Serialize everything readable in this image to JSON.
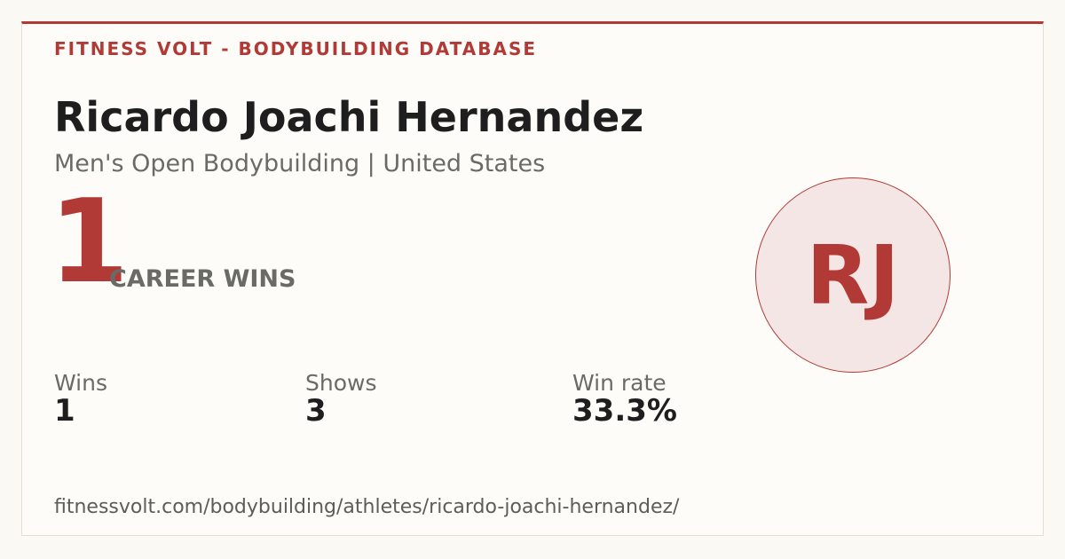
{
  "header": {
    "site": "FITNESS VOLT - BODYBUILDING DATABASE"
  },
  "athlete": {
    "name": "Ricardo Joachi Hernandez",
    "subtitle": "Men's Open Bodybuilding | United States",
    "initials": "RJ"
  },
  "career": {
    "wins": "1",
    "label": "CAREER WINS"
  },
  "stats": [
    {
      "label": "Wins",
      "value": "1"
    },
    {
      "label": "Shows",
      "value": "3"
    },
    {
      "label": "Win rate",
      "value": "33.3%"
    }
  ],
  "footer": {
    "url": "fitnessvolt.com/bodybuilding/athletes/ricardo-joachi-hernandez/"
  }
}
